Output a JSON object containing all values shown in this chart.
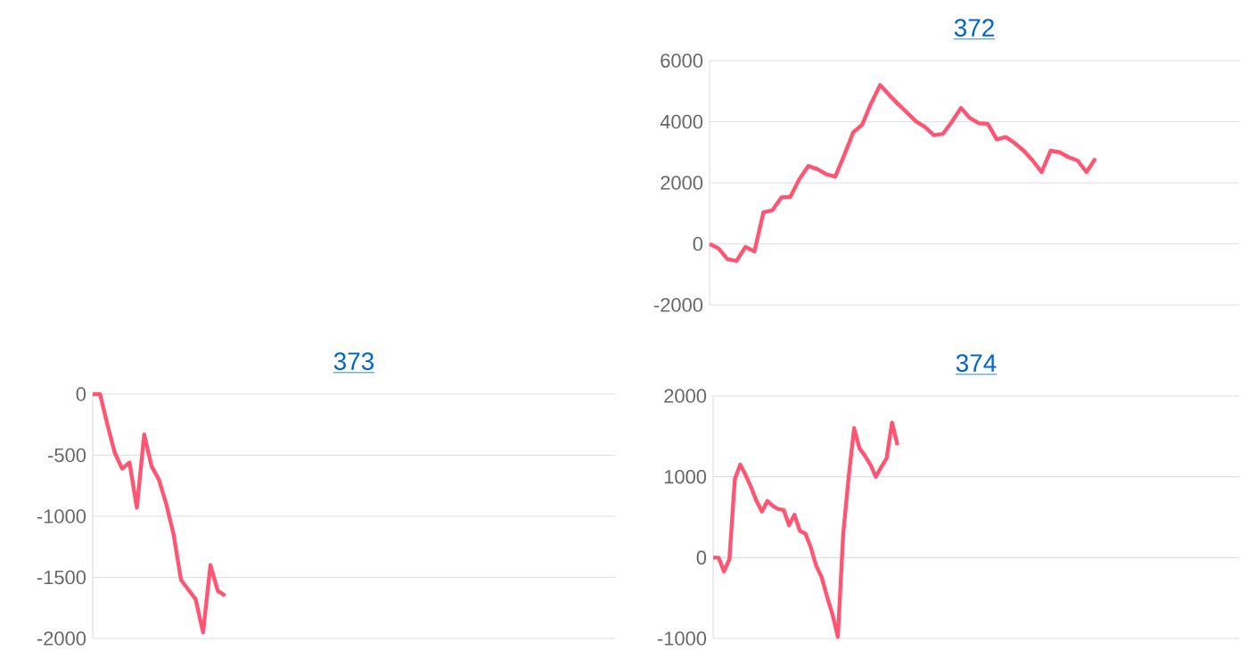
{
  "chart_data": [
    {
      "type": "line",
      "title": "372",
      "categories": [
        null,
        null,
        null,
        null,
        null,
        null,
        null,
        null,
        null,
        null,
        null,
        null,
        null,
        null,
        null,
        null,
        null,
        null,
        null,
        null,
        null,
        null,
        null,
        null,
        null,
        null,
        null,
        null,
        null,
        null,
        null,
        null,
        null,
        null,
        null,
        null,
        null,
        null,
        null,
        null,
        null,
        null,
        null,
        null,
        null,
        null,
        null,
        null,
        null,
        null,
        null,
        null,
        null,
        null,
        null,
        null,
        null,
        null,
        null,
        null
      ],
      "series": [
        {
          "color": "#ff5472",
          "values": [
            0,
            -150,
            -500,
            -560,
            -100,
            -250,
            1030,
            1100,
            1520,
            1540,
            2120,
            2550,
            2450,
            2280,
            2200,
            2900,
            3650,
            3900,
            4600,
            5200,
            4880,
            4580,
            4300,
            4010,
            3830,
            3560,
            3600,
            4000,
            4450,
            4120,
            3950,
            3930,
            3420,
            3500,
            3300,
            3050,
            2730,
            2350,
            3050,
            3000,
            2840,
            2730,
            2350,
            2800,
            null,
            null,
            null,
            null,
            null,
            null,
            null,
            null,
            null,
            null,
            null,
            null,
            null,
            null,
            null,
            null
          ]
        }
      ],
      "ylim": [
        -2000,
        6000
      ],
      "yticks": [
        -2000,
        0,
        2000,
        4000,
        6000
      ],
      "grid": "y",
      "tick_labels": "y"
    },
    {
      "type": "line",
      "title": "373",
      "categories": [
        null,
        null,
        null,
        null,
        null,
        null,
        null,
        null,
        null,
        null,
        null,
        null,
        null,
        null,
        null,
        null,
        null,
        null,
        null,
        null,
        null,
        null,
        null,
        null,
        null,
        null,
        null,
        null,
        null,
        null,
        null,
        null,
        null,
        null,
        null,
        null,
        null,
        null,
        null,
        null,
        null,
        null,
        null,
        null,
        null,
        null,
        null,
        null,
        null,
        null,
        null,
        null,
        null,
        null,
        null,
        null,
        null,
        null,
        null,
        null,
        null,
        null,
        null,
        null,
        null,
        null,
        null,
        null,
        null,
        null,
        null,
        null
      ],
      "series": [
        {
          "color": "#ff5472",
          "values": [
            0,
            0,
            -250,
            -480,
            -610,
            -560,
            -930,
            -330,
            -590,
            -700,
            -900,
            -1150,
            -1520,
            -1600,
            -1680,
            -1950,
            -1400,
            -1610,
            -1650,
            null,
            null,
            null,
            null,
            null,
            null,
            null,
            null,
            null,
            null,
            null,
            null,
            null,
            null,
            null,
            null,
            null,
            null,
            null,
            null,
            null,
            null,
            null,
            null,
            null,
            null,
            null,
            null,
            null,
            null,
            null,
            null,
            null,
            null,
            null,
            null,
            null,
            null,
            null,
            null,
            null,
            null,
            null,
            null,
            null,
            null,
            null,
            null,
            null,
            null,
            null,
            null,
            null
          ]
        }
      ],
      "ylim": [
        -2000,
        0
      ],
      "yticks": [
        -2000,
        -1500,
        -1000,
        -500,
        0
      ],
      "grid": "y",
      "tick_labels": "y"
    },
    {
      "type": "line",
      "title": "374",
      "categories": [
        null,
        null,
        null,
        null,
        null,
        null,
        null,
        null,
        null,
        null,
        null,
        null,
        null,
        null,
        null,
        null,
        null,
        null,
        null,
        null,
        null,
        null,
        null,
        null,
        null,
        null,
        null,
        null,
        null,
        null,
        null,
        null,
        null,
        null,
        null,
        null,
        null,
        null,
        null,
        null,
        null,
        null,
        null,
        null,
        null,
        null,
        null,
        null,
        null,
        null,
        null,
        null,
        null,
        null,
        null,
        null,
        null,
        null,
        null,
        null,
        null,
        null,
        null,
        null,
        null,
        null,
        null,
        null,
        null,
        null,
        null,
        null,
        null,
        null,
        null,
        null,
        null,
        null,
        null,
        null,
        null,
        null,
        null,
        null,
        null,
        null,
        null,
        null,
        null,
        null,
        null,
        null,
        null,
        null,
        null,
        null,
        null,
        null
      ],
      "series": [
        {
          "color": "#ff5472",
          "values": [
            0,
            0,
            -170,
            -20,
            970,
            1150,
            1020,
            870,
            700,
            570,
            700,
            640,
            600,
            590,
            400,
            530,
            330,
            300,
            130,
            -100,
            -240,
            -480,
            -700,
            -980,
            300,
            1000,
            1600,
            1350,
            1260,
            1150,
            1000,
            1120,
            1230,
            1670,
            1390,
            null,
            null,
            null,
            null,
            null,
            null,
            null,
            null,
            null,
            null,
            null,
            null,
            null,
            null,
            null,
            null,
            null,
            null,
            null,
            null,
            null,
            null,
            null,
            null,
            null,
            null,
            null,
            null,
            null,
            null,
            null,
            null,
            null,
            null,
            null,
            null,
            null,
            null,
            null,
            null,
            null,
            null,
            null,
            null,
            null,
            null,
            null,
            null,
            null,
            null,
            null,
            null,
            null,
            null,
            null,
            null,
            null,
            null,
            null,
            null,
            null,
            null,
            null
          ]
        }
      ],
      "ylim": [
        -1000,
        2000
      ],
      "yticks": [
        -1000,
        0,
        1000,
        2000
      ],
      "grid": "y",
      "tick_labels": "y"
    }
  ]
}
